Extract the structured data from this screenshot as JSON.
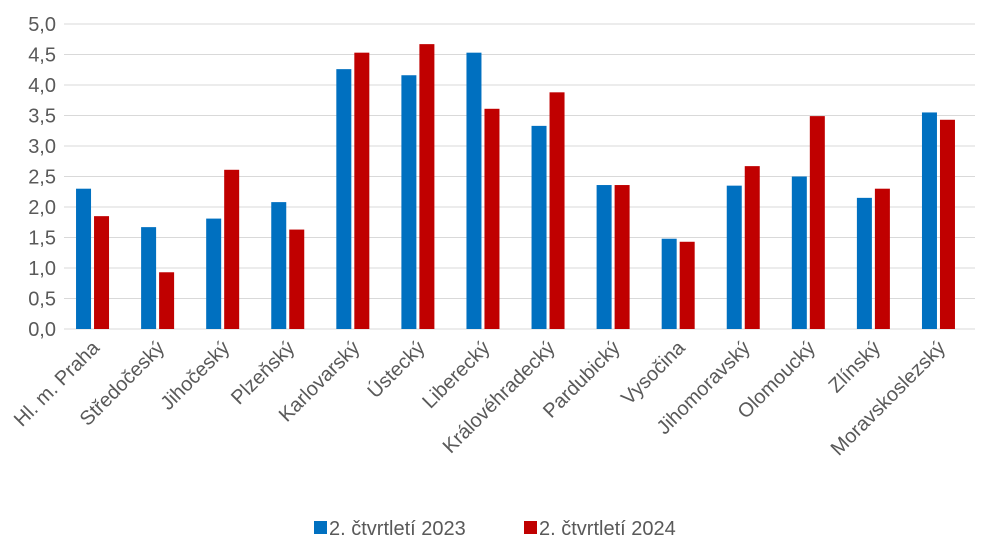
{
  "chart_data": {
    "type": "bar",
    "title": "",
    "xlabel": "",
    "ylabel": "",
    "ylim": [
      0,
      5
    ],
    "y_ticks": [
      "0,0",
      "0,5",
      "1,0",
      "1,5",
      "2,0",
      "2,5",
      "3,0",
      "3,5",
      "4,0",
      "4,5",
      "5,0"
    ],
    "grid": true,
    "legend_position": "bottom",
    "categories": [
      "Hl. m. Praha",
      "Středočeský",
      "Jihočeský",
      "Plzeňský",
      "Karlovarský",
      "Ústecký",
      "Liberecký",
      "Královéhradecký",
      "Pardubický",
      "Vysočina",
      "Jihomoravský",
      "Olomoucký",
      "Zlínský",
      "Moravskoslezský"
    ],
    "series": [
      {
        "name": "2. čtvrtletí 2023",
        "color": "#0070C0",
        "values": [
          2.3,
          1.67,
          1.81,
          2.08,
          4.26,
          4.16,
          4.53,
          3.33,
          2.36,
          1.48,
          2.35,
          2.5,
          2.15,
          3.55
        ]
      },
      {
        "name": "2. čtvrtletí 2024",
        "color": "#C00000",
        "values": [
          1.85,
          0.93,
          2.61,
          1.63,
          4.53,
          4.67,
          3.61,
          3.88,
          2.36,
          1.43,
          2.67,
          3.49,
          2.3,
          3.43
        ]
      }
    ]
  },
  "colors": {
    "gridline": "#D9D9D9",
    "axis_text": "#595959"
  }
}
